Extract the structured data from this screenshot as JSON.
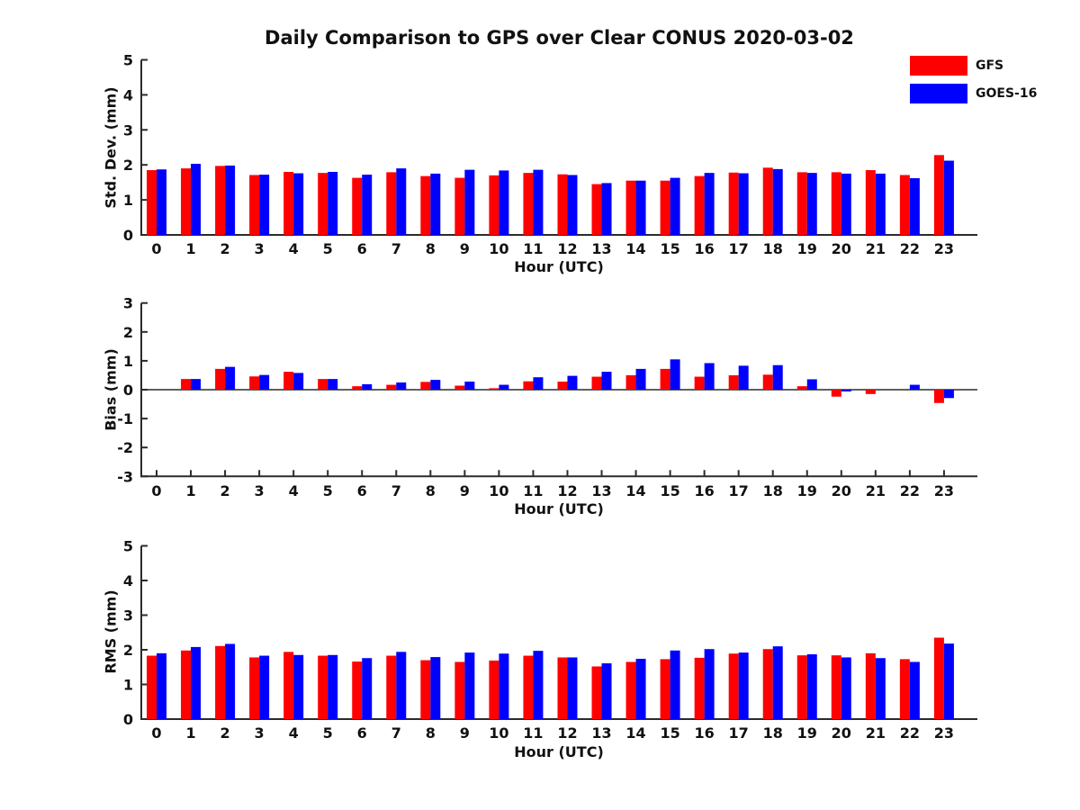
{
  "title": "Daily Comparison to GPS over Clear CONUS 2020-03-02",
  "colors": {
    "gfs": "#ff0000",
    "goes16": "#0000ff",
    "axis": "#2b2b2b",
    "text": "#111111"
  },
  "legend": {
    "position": "top-right",
    "items": [
      {
        "label": "GFS",
        "color": "#ff0000"
      },
      {
        "label": "GOES-16",
        "color": "#0000ff"
      }
    ]
  },
  "chart_data": [
    {
      "type": "bar",
      "ylabel": "Std. Dev. (mm)",
      "xlabel": "Hour (UTC)",
      "categories": [
        "0",
        "1",
        "2",
        "3",
        "4",
        "5",
        "6",
        "7",
        "8",
        "9",
        "10",
        "11",
        "12",
        "13",
        "14",
        "15",
        "16",
        "17",
        "18",
        "19",
        "20",
        "21",
        "22",
        "23"
      ],
      "ylim": [
        0,
        5
      ],
      "yticks": [
        0,
        1,
        2,
        3,
        4,
        5
      ],
      "grid": false,
      "series": [
        {
          "name": "GFS",
          "color": "#ff0000",
          "values": [
            1.85,
            1.9,
            1.97,
            1.71,
            1.8,
            1.77,
            1.63,
            1.79,
            1.68,
            1.63,
            1.7,
            1.77,
            1.73,
            1.45,
            1.55,
            1.55,
            1.68,
            1.78,
            1.92,
            1.79,
            1.79,
            1.85,
            1.71,
            2.28
          ]
        },
        {
          "name": "GOES-16",
          "color": "#0000ff",
          "values": [
            1.87,
            2.03,
            1.98,
            1.72,
            1.76,
            1.8,
            1.72,
            1.9,
            1.75,
            1.86,
            1.84,
            1.86,
            1.71,
            1.48,
            1.55,
            1.63,
            1.77,
            1.76,
            1.88,
            1.77,
            1.75,
            1.75,
            1.62,
            2.12
          ]
        }
      ]
    },
    {
      "type": "bar",
      "ylabel": "Bias (mm)",
      "xlabel": "Hour (UTC)",
      "categories": [
        "0",
        "1",
        "2",
        "3",
        "4",
        "5",
        "6",
        "7",
        "8",
        "9",
        "10",
        "11",
        "12",
        "13",
        "14",
        "15",
        "16",
        "17",
        "18",
        "19",
        "20",
        "21",
        "22",
        "23"
      ],
      "ylim": [
        -3,
        3
      ],
      "yticks": [
        -3,
        -2,
        -1,
        0,
        1,
        2,
        3
      ],
      "grid": false,
      "zero_line": true,
      "series": [
        {
          "name": "GFS",
          "color": "#ff0000",
          "values": [
            0.0,
            0.37,
            0.72,
            0.46,
            0.62,
            0.37,
            0.12,
            0.17,
            0.27,
            0.14,
            0.05,
            0.29,
            0.28,
            0.45,
            0.5,
            0.72,
            0.45,
            0.5,
            0.52,
            0.12,
            -0.24,
            -0.15,
            0.0,
            -0.46
          ]
        },
        {
          "name": "GOES-16",
          "color": "#0000ff",
          "values": [
            0.0,
            0.37,
            0.79,
            0.51,
            0.58,
            0.37,
            0.19,
            0.25,
            0.34,
            0.28,
            0.17,
            0.43,
            0.48,
            0.62,
            0.72,
            1.05,
            0.92,
            0.83,
            0.85,
            0.36,
            -0.06,
            0.0,
            0.17,
            -0.29
          ]
        }
      ]
    },
    {
      "type": "bar",
      "ylabel": "RMS (mm)",
      "xlabel": "Hour (UTC)",
      "categories": [
        "0",
        "1",
        "2",
        "3",
        "4",
        "5",
        "6",
        "7",
        "8",
        "9",
        "10",
        "11",
        "12",
        "13",
        "14",
        "15",
        "16",
        "17",
        "18",
        "19",
        "20",
        "21",
        "22",
        "23"
      ],
      "ylim": [
        0,
        5
      ],
      "yticks": [
        0,
        1,
        2,
        3,
        4,
        5
      ],
      "grid": false,
      "series": [
        {
          "name": "GFS",
          "color": "#ff0000",
          "values": [
            1.83,
            1.98,
            2.11,
            1.78,
            1.94,
            1.83,
            1.66,
            1.83,
            1.7,
            1.65,
            1.69,
            1.83,
            1.78,
            1.52,
            1.65,
            1.73,
            1.77,
            1.89,
            2.02,
            1.84,
            1.84,
            1.9,
            1.73,
            2.35
          ]
        },
        {
          "name": "GOES-16",
          "color": "#0000ff",
          "values": [
            1.9,
            2.08,
            2.17,
            1.83,
            1.85,
            1.85,
            1.76,
            1.94,
            1.79,
            1.92,
            1.89,
            1.97,
            1.78,
            1.61,
            1.74,
            1.98,
            2.02,
            1.92,
            2.1,
            1.87,
            1.78,
            1.76,
            1.65,
            2.18
          ]
        }
      ]
    }
  ]
}
